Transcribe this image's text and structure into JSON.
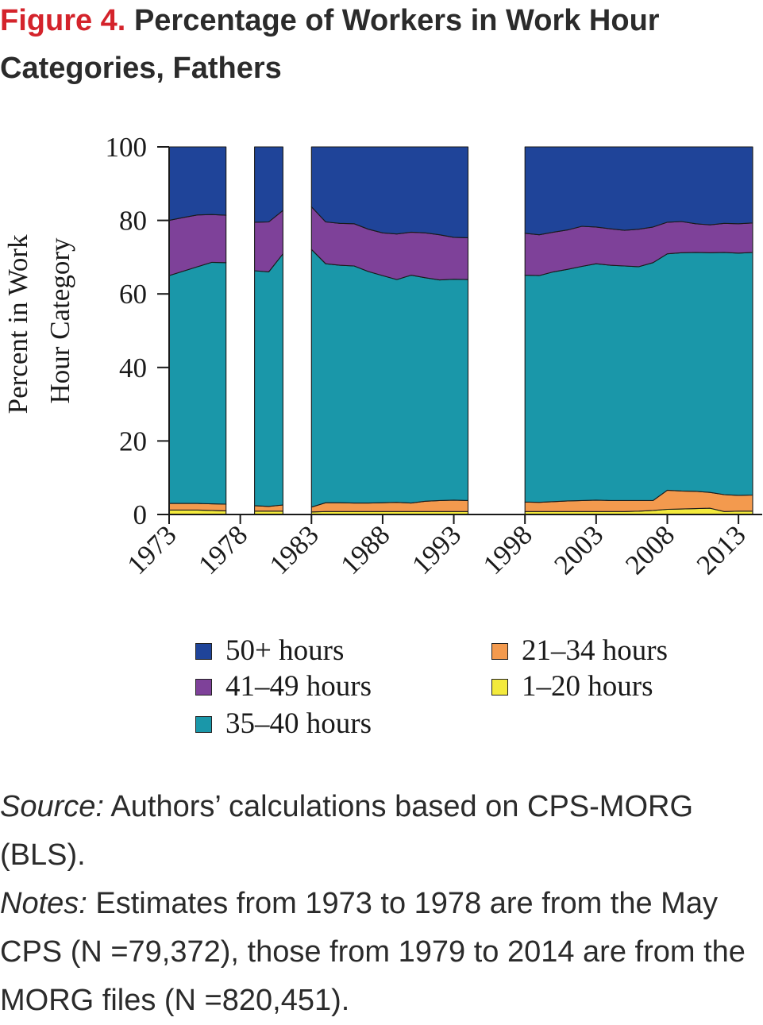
{
  "figure": {
    "label": "Figure 4.",
    "title": "Percentage of Workers in Work Hour Categories, Fathers"
  },
  "chart_data": {
    "type": "area",
    "stacked": true,
    "ylabel": "Percent in Work Hour Category",
    "xlabel": "",
    "ylim": [
      0,
      100
    ],
    "yticks": [
      0,
      20,
      40,
      60,
      80,
      100
    ],
    "xticks": [
      1973,
      1978,
      1983,
      1988,
      1993,
      1998,
      2003,
      2008,
      2013
    ],
    "grid": false,
    "legend_position": "bottom",
    "segments": [
      [
        1973,
        1974,
        1975,
        1976,
        1977
      ],
      [
        1979,
        1980,
        1981
      ],
      [
        1983,
        1984,
        1985,
        1986,
        1987,
        1988,
        1989,
        1990,
        1991,
        1992,
        1993,
        1994
      ],
      [
        1998,
        1999,
        2000,
        2001,
        2002,
        2003,
        2004,
        2005,
        2006,
        2007,
        2008,
        2009,
        2010,
        2011,
        2012,
        2013,
        2014
      ]
    ],
    "x": [
      1973,
      1974,
      1975,
      1976,
      1977,
      1979,
      1980,
      1981,
      1983,
      1984,
      1985,
      1986,
      1987,
      1988,
      1989,
      1990,
      1991,
      1992,
      1993,
      1994,
      1998,
      1999,
      2000,
      2001,
      2002,
      2003,
      2004,
      2005,
      2006,
      2007,
      2008,
      2009,
      2010,
      2011,
      2012,
      2013,
      2014
    ],
    "series": [
      {
        "name": "1–20 hours",
        "color": "#f3ea3c",
        "values": [
          1.2,
          1.2,
          1.2,
          1.1,
          1.0,
          0.9,
          0.9,
          0.9,
          0.7,
          0.8,
          0.8,
          0.8,
          0.8,
          0.8,
          0.8,
          0.8,
          0.8,
          0.8,
          0.8,
          0.8,
          0.8,
          0.8,
          0.8,
          0.8,
          0.8,
          0.8,
          0.8,
          0.8,
          0.9,
          1.1,
          1.4,
          1.5,
          1.6,
          1.7,
          0.8,
          0.9,
          0.9
        ]
      },
      {
        "name": "21–34 hours",
        "color": "#f39a4e",
        "values": [
          1.8,
          1.8,
          1.8,
          1.8,
          1.8,
          1.5,
          1.3,
          1.7,
          1.3,
          2.4,
          2.4,
          2.3,
          2.3,
          2.4,
          2.5,
          2.3,
          2.8,
          3.0,
          3.1,
          3.0,
          2.6,
          2.5,
          2.7,
          2.9,
          3.0,
          3.1,
          3.0,
          3.0,
          2.9,
          2.7,
          5.2,
          4.9,
          4.7,
          4.3,
          4.6,
          4.3,
          4.4
        ]
      },
      {
        "name": "35–40 hours",
        "color": "#1a97a9",
        "values": [
          62.0,
          63.2,
          64.4,
          65.7,
          65.7,
          63.9,
          63.8,
          68.3,
          70.1,
          65.0,
          64.6,
          64.5,
          63.0,
          61.8,
          60.6,
          62.0,
          60.8,
          60.0,
          60.1,
          60.1,
          61.7,
          61.7,
          62.5,
          63.0,
          63.7,
          64.3,
          64.0,
          63.8,
          63.6,
          64.7,
          64.3,
          64.8,
          65.0,
          65.2,
          65.9,
          65.9,
          66.0
        ]
      },
      {
        "name": "41–49 hours",
        "color": "#7e4199",
        "values": [
          15.0,
          14.6,
          14.1,
          13.0,
          12.9,
          13.2,
          13.6,
          11.8,
          11.6,
          11.4,
          11.4,
          11.5,
          11.5,
          11.6,
          12.4,
          11.7,
          12.2,
          12.3,
          11.4,
          11.4,
          11.4,
          11.1,
          10.8,
          10.7,
          10.9,
          10.0,
          9.9,
          9.7,
          10.2,
          9.7,
          8.6,
          8.5,
          7.8,
          7.6,
          7.9,
          8.0,
          8.0
        ]
      },
      {
        "name": "50+ hours",
        "color": "#1f4499",
        "values": [
          20.0,
          19.2,
          18.5,
          18.4,
          18.6,
          20.5,
          20.4,
          17.3,
          16.3,
          20.4,
          20.8,
          20.9,
          22.4,
          23.4,
          23.7,
          23.2,
          23.4,
          23.9,
          24.6,
          24.7,
          23.5,
          23.9,
          23.2,
          22.6,
          21.6,
          21.8,
          22.3,
          22.7,
          22.4,
          21.8,
          20.5,
          20.3,
          20.9,
          21.2,
          20.8,
          20.9,
          20.7
        ]
      }
    ]
  },
  "legend": {
    "items": [
      {
        "label": "50+ hours",
        "color": "#1f4499"
      },
      {
        "label": "41–49 hours",
        "color": "#7e4199"
      },
      {
        "label": "35–40 hours",
        "color": "#1a97a9"
      },
      {
        "label": "21–34 hours",
        "color": "#f39a4e"
      },
      {
        "label": "1–20 hours",
        "color": "#f3ea3c"
      }
    ]
  },
  "notes": {
    "source_label": "Source:",
    "source_text": " Authors’ calculations based on CPS-MORG (BLS).",
    "notes_label": "Notes:",
    "notes_text": " Estimates from 1973 to 1978 are from the May CPS (N =79,372), those from 1979 to 2014 are from the MORG files (N =820,451)."
  }
}
